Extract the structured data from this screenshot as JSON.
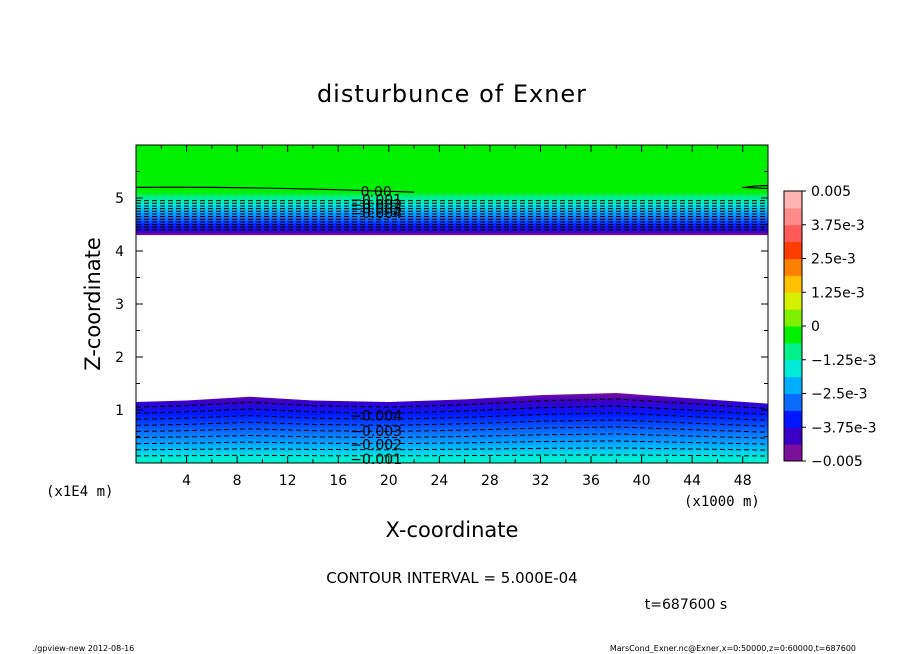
{
  "chart_data": {
    "type": "heatmap",
    "title": "disturbunce of Exner",
    "xlabel": "X-coordinate",
    "ylabel": "Z-coordinate",
    "x_unit": "(x1000 m)",
    "y_unit": "(x1E4 m)",
    "xlim": [
      0,
      50
    ],
    "ylim": [
      0,
      6
    ],
    "x_ticks": [
      "4",
      "8",
      "12",
      "16",
      "20",
      "24",
      "28",
      "32",
      "36",
      "40",
      "44",
      "48"
    ],
    "y_ticks": [
      "1",
      "2",
      "3",
      "4",
      "5"
    ],
    "contour_interval": "CONTOUR INTERVAL = 5.000E-04",
    "time": "t=687600 s",
    "colorbar": {
      "range": [
        -0.005,
        0.005
      ],
      "labels": [
        "0.005",
        "3.75e-3",
        "2.5e-3",
        "1.25e-3",
        "0",
        "−1.25e-3",
        "−2.5e-3",
        "−3.75e-3",
        "−0.005"
      ],
      "colors": [
        "#7b109a",
        "#3b00c8",
        "#0018ff",
        "#0a6cff",
        "#00b0ff",
        "#00ecd8",
        "#00f08c",
        "#00f000",
        "#7ef000",
        "#d6f000",
        "#ffc000",
        "#ff8000",
        "#ff3c00",
        "#ff5a5a",
        "#ff8a8a",
        "#ffb4b4"
      ]
    },
    "upper_band": {
      "z_bottom": 4.3,
      "z_top": 6.0,
      "contour_labels": [
        "0.00",
        "−0.001",
        "−0.002",
        "−0.003",
        "−0.004"
      ]
    },
    "lower_band": {
      "z_top_profile": [
        [
          0,
          1.15
        ],
        [
          4,
          1.18
        ],
        [
          9,
          1.25
        ],
        [
          14,
          1.18
        ],
        [
          20,
          1.15
        ],
        [
          26,
          1.2
        ],
        [
          32,
          1.28
        ],
        [
          38,
          1.32
        ],
        [
          44,
          1.22
        ],
        [
          50,
          1.12
        ]
      ],
      "contour_labels": [
        "−0.004",
        "−0.003",
        "−0.002",
        "−0.001"
      ]
    }
  },
  "footer": {
    "left": "./gpview-new  2012-08-16",
    "right": "MarsCond_Exner.nc@Exner,x=0:50000,z=0:60000,t=687600"
  }
}
